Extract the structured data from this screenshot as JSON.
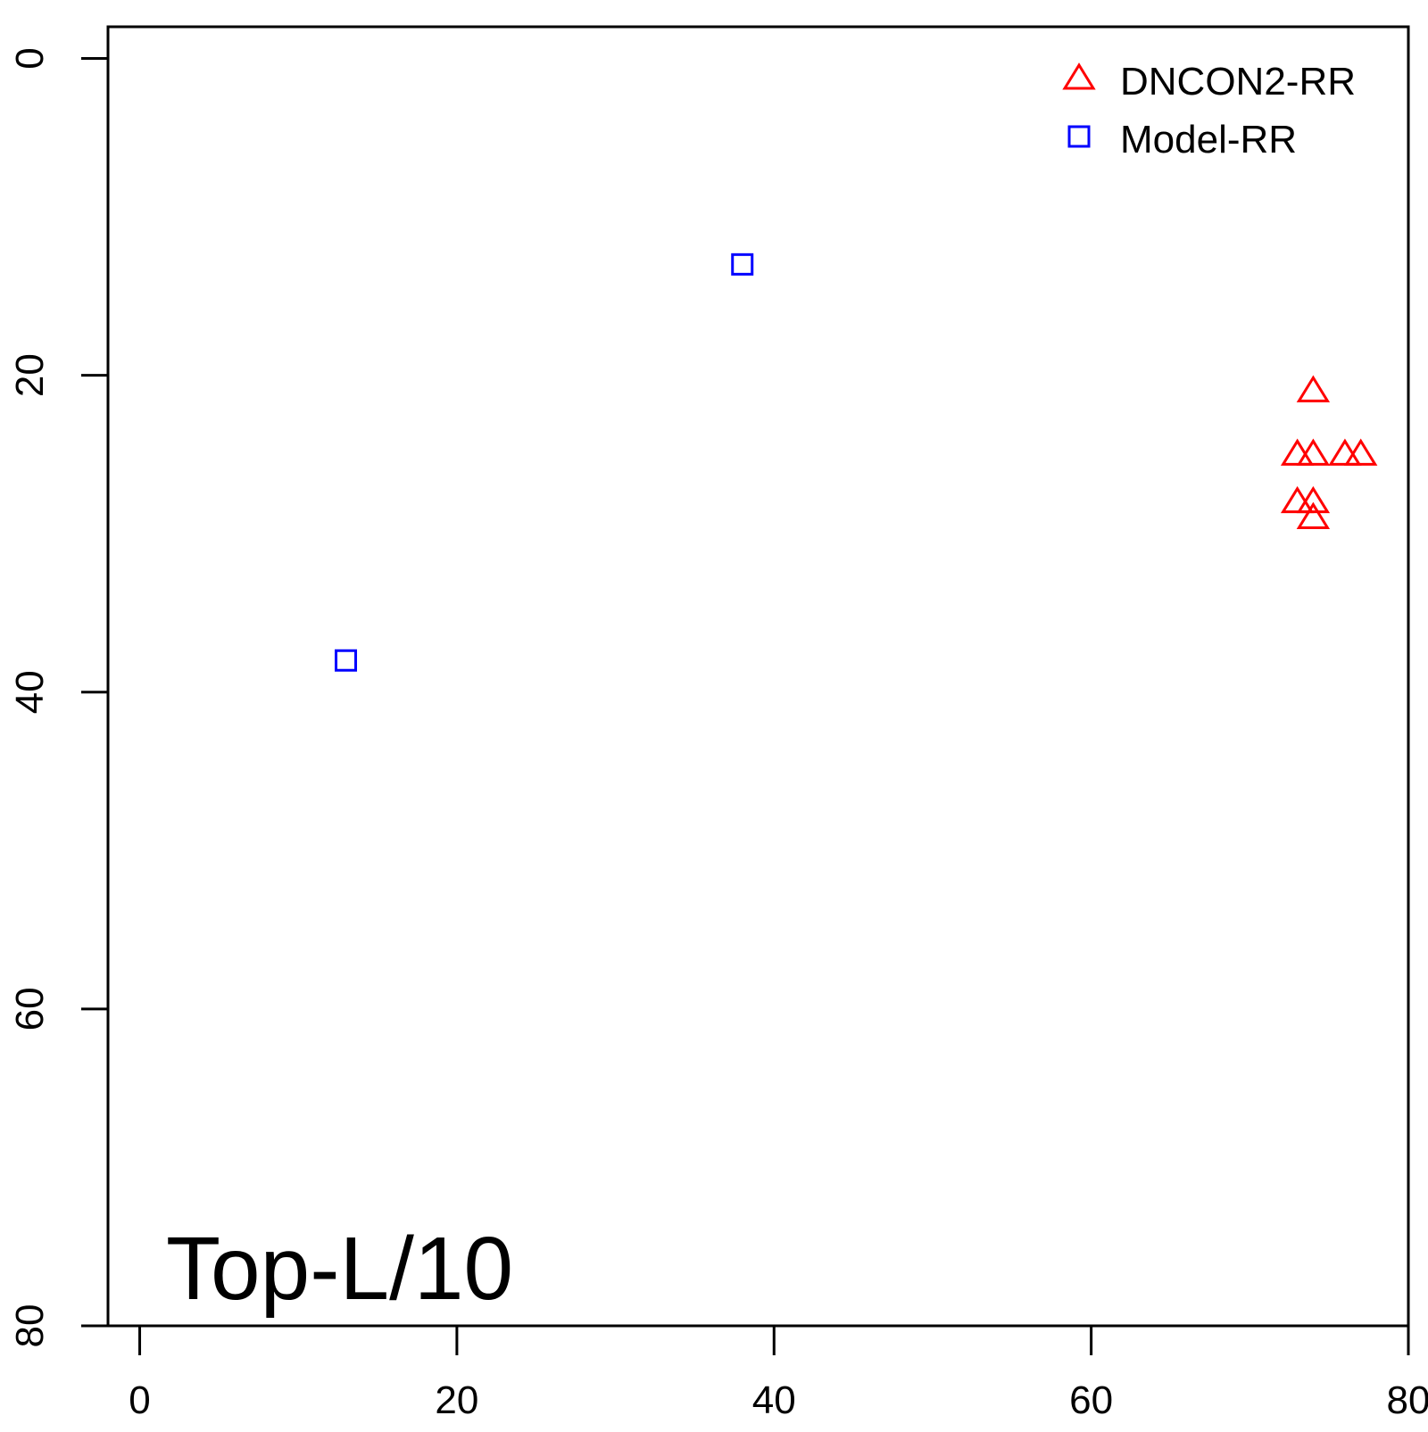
{
  "chart_data": {
    "type": "scatter",
    "title": "",
    "xlabel": "",
    "ylabel": "",
    "xlim": [
      -2,
      80
    ],
    "ylim": [
      80,
      -2
    ],
    "y_reversed": true,
    "grid": false,
    "x_ticks": [
      0,
      20,
      40,
      60,
      80
    ],
    "y_ticks": [
      0,
      20,
      40,
      60,
      80
    ],
    "x_tick_labels": [
      "0",
      "20",
      "40",
      "60",
      "80"
    ],
    "y_tick_labels": [
      "0",
      "20",
      "40",
      "60",
      "80"
    ],
    "annotation": "Top-L/10",
    "legend": {
      "placement": "top-right"
    },
    "series": [
      {
        "name": "DNCON2-RR",
        "marker": "triangle",
        "color": "#ff0000",
        "points": [
          {
            "x": 74,
            "y": 21
          },
          {
            "x": 73,
            "y": 25
          },
          {
            "x": 74,
            "y": 25
          },
          {
            "x": 76,
            "y": 25
          },
          {
            "x": 77,
            "y": 25
          },
          {
            "x": 73,
            "y": 28
          },
          {
            "x": 74,
            "y": 28
          },
          {
            "x": 74,
            "y": 29
          }
        ]
      },
      {
        "name": "Model-RR",
        "marker": "square",
        "color": "#0000ff",
        "points": [
          {
            "x": 38,
            "y": 13
          },
          {
            "x": 13,
            "y": 38
          }
        ]
      }
    ]
  }
}
